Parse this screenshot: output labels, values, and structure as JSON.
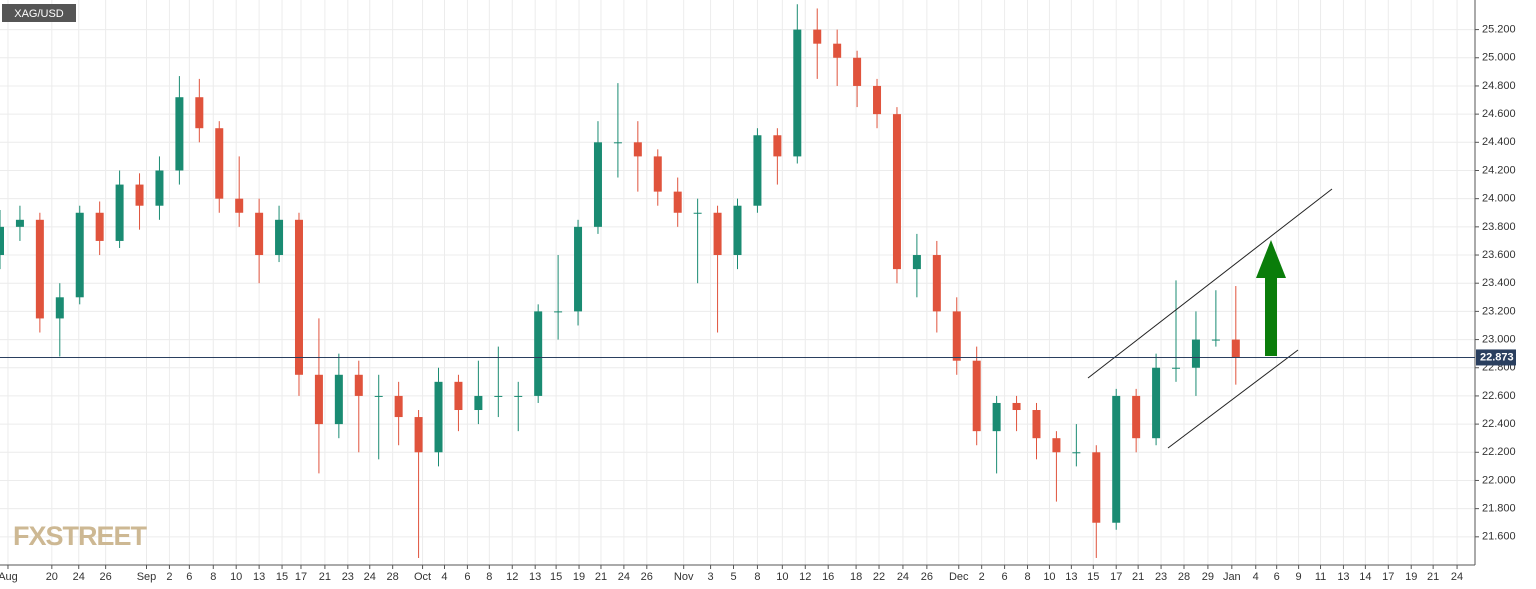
{
  "chart_data": {
    "type": "candlestick",
    "symbol": "XAG/USD",
    "watermark": "FXSTREET",
    "up_color": "#1a8b72",
    "down_color": "#e0533c",
    "grid": true,
    "last_price": 22.873,
    "xlim": [
      0,
      148
    ],
    "ylim": [
      21.4,
      25.41
    ],
    "yticks": [
      {
        "value": 21.6,
        "label": "21.600"
      },
      {
        "value": 21.8,
        "label": "21.800"
      },
      {
        "value": 22.0,
        "label": "22.000"
      },
      {
        "value": 22.2,
        "label": "22.200"
      },
      {
        "value": 22.4,
        "label": "22.400"
      },
      {
        "value": 22.6,
        "label": "22.600"
      },
      {
        "value": 22.8,
        "label": "22.800"
      },
      {
        "value": 23.0,
        "label": "23.000"
      },
      {
        "value": 23.2,
        "label": "23.200"
      },
      {
        "value": 23.4,
        "label": "23.400"
      },
      {
        "value": 23.6,
        "label": "23.600"
      },
      {
        "value": 23.8,
        "label": "23.800"
      },
      {
        "value": 24.0,
        "label": "24.000"
      },
      {
        "value": 24.2,
        "label": "24.200"
      },
      {
        "value": 24.4,
        "label": "24.400"
      },
      {
        "value": 24.6,
        "label": "24.600"
      },
      {
        "value": 24.8,
        "label": "24.800"
      },
      {
        "value": 25.0,
        "label": "25.000"
      },
      {
        "value": 25.2,
        "label": "25.200"
      }
    ],
    "xticks": [
      {
        "value": 0.8,
        "label": "Aug"
      },
      {
        "value": 5.2,
        "label": "20"
      },
      {
        "value": 7.9,
        "label": "24"
      },
      {
        "value": 10.6,
        "label": "26"
      },
      {
        "value": 14.7,
        "label": "Sep"
      },
      {
        "value": 17.0,
        "label": "2"
      },
      {
        "value": 19.0,
        "label": "6"
      },
      {
        "value": 21.4,
        "label": "8"
      },
      {
        "value": 23.7,
        "label": "10"
      },
      {
        "value": 26.0,
        "label": "13"
      },
      {
        "value": 28.3,
        "label": "15"
      },
      {
        "value": 30.2,
        "label": "17"
      },
      {
        "value": 32.6,
        "label": "21"
      },
      {
        "value": 34.9,
        "label": "23"
      },
      {
        "value": 37.1,
        "label": "24"
      },
      {
        "value": 39.4,
        "label": "28"
      },
      {
        "value": 42.4,
        "label": "Oct"
      },
      {
        "value": 44.6,
        "label": "4"
      },
      {
        "value": 46.9,
        "label": "6"
      },
      {
        "value": 49.1,
        "label": "8"
      },
      {
        "value": 51.4,
        "label": "12"
      },
      {
        "value": 53.7,
        "label": "13"
      },
      {
        "value": 55.8,
        "label": "15"
      },
      {
        "value": 58.1,
        "label": "19"
      },
      {
        "value": 60.3,
        "label": "21"
      },
      {
        "value": 62.6,
        "label": "24"
      },
      {
        "value": 64.9,
        "label": "26"
      },
      {
        "value": 68.6,
        "label": "Nov"
      },
      {
        "value": 71.3,
        "label": "3"
      },
      {
        "value": 73.6,
        "label": "5"
      },
      {
        "value": 76.0,
        "label": "8"
      },
      {
        "value": 78.5,
        "label": "10"
      },
      {
        "value": 80.8,
        "label": "12"
      },
      {
        "value": 83.1,
        "label": "16"
      },
      {
        "value": 85.9,
        "label": "18"
      },
      {
        "value": 88.2,
        "label": "22"
      },
      {
        "value": 90.6,
        "label": "24"
      },
      {
        "value": 93.0,
        "label": "26"
      },
      {
        "value": 96.2,
        "label": "Dec"
      },
      {
        "value": 98.5,
        "label": "2"
      },
      {
        "value": 100.8,
        "label": "6"
      },
      {
        "value": 103.1,
        "label": "8"
      },
      {
        "value": 105.3,
        "label": "10"
      },
      {
        "value": 107.5,
        "label": "13"
      },
      {
        "value": 109.7,
        "label": "15"
      },
      {
        "value": 112.0,
        "label": "17"
      },
      {
        "value": 114.2,
        "label": "21"
      },
      {
        "value": 116.5,
        "label": "23"
      },
      {
        "value": 118.8,
        "label": "28"
      },
      {
        "value": 121.2,
        "label": "29"
      },
      {
        "value": 123.6,
        "label": "Jan"
      },
      {
        "value": 126.0,
        "label": "4"
      },
      {
        "value": 128.1,
        "label": "6"
      },
      {
        "value": 130.3,
        "label": "9"
      },
      {
        "value": 132.5,
        "label": "11"
      },
      {
        "value": 134.8,
        "label": "13"
      },
      {
        "value": 137.0,
        "label": "14"
      },
      {
        "value": 139.3,
        "label": "17"
      },
      {
        "value": 141.6,
        "label": "19"
      },
      {
        "value": 143.8,
        "label": "21"
      },
      {
        "value": 146.2,
        "label": "24"
      }
    ],
    "x": [
      0,
      2,
      4,
      6,
      8,
      10,
      12,
      14,
      16,
      18,
      20,
      22,
      24,
      26,
      28,
      30,
      32,
      34,
      36,
      38,
      40,
      42,
      44,
      46,
      48,
      50,
      52,
      54,
      56,
      58,
      60,
      62,
      64,
      66,
      68,
      70,
      72,
      74,
      76,
      78,
      80,
      82,
      84,
      86,
      88,
      90,
      92,
      94,
      96,
      98,
      100,
      102,
      104,
      106,
      108,
      110,
      112,
      114,
      116,
      118,
      120,
      122,
      124
    ],
    "open": [
      23.6,
      23.8,
      23.85,
      23.15,
      23.3,
      23.9,
      23.7,
      24.1,
      23.95,
      24.2,
      24.72,
      24.5,
      24.0,
      23.9,
      23.6,
      23.85,
      22.75,
      22.4,
      22.75,
      22.6,
      22.6,
      22.45,
      22.2,
      22.7,
      22.5,
      22.6,
      22.6,
      22.6,
      23.2,
      23.2,
      23.8,
      24.4,
      24.4,
      24.3,
      24.05,
      23.9,
      23.9,
      23.6,
      23.95,
      24.45,
      24.3,
      25.2,
      25.1,
      25.0,
      24.8,
      24.6,
      23.5,
      23.6,
      23.2,
      22.85,
      22.35,
      22.55,
      22.5,
      22.3,
      22.2,
      22.2,
      21.7,
      22.6,
      22.3,
      22.8,
      22.8,
      23.0,
      23.0
    ],
    "high": [
      23.92,
      23.95,
      23.9,
      23.4,
      23.95,
      23.98,
      24.2,
      24.18,
      24.3,
      24.87,
      24.85,
      24.55,
      24.3,
      24.0,
      23.95,
      23.9,
      23.15,
      22.9,
      22.85,
      22.75,
      22.7,
      22.5,
      22.8,
      22.75,
      22.85,
      22.95,
      22.7,
      23.25,
      23.6,
      23.85,
      24.55,
      24.82,
      24.55,
      24.35,
      24.15,
      24.0,
      23.95,
      24.0,
      24.5,
      24.5,
      25.38,
      25.35,
      25.2,
      25.05,
      24.85,
      24.65,
      23.75,
      23.7,
      23.3,
      22.95,
      22.6,
      22.6,
      22.55,
      22.35,
      22.4,
      22.25,
      22.65,
      22.65,
      22.9,
      23.42,
      23.2,
      23.35,
      23.38
    ],
    "low": [
      23.5,
      23.7,
      23.05,
      22.88,
      23.25,
      23.6,
      23.65,
      23.78,
      23.85,
      24.1,
      24.4,
      23.9,
      23.8,
      23.4,
      23.55,
      22.6,
      22.05,
      22.3,
      22.2,
      22.15,
      22.25,
      21.45,
      22.1,
      22.35,
      22.4,
      22.45,
      22.35,
      22.55,
      23.0,
      23.1,
      23.75,
      24.15,
      24.05,
      23.95,
      23.8,
      23.4,
      23.05,
      23.5,
      23.9,
      24.1,
      24.25,
      24.85,
      24.8,
      24.65,
      24.5,
      23.4,
      23.3,
      23.05,
      22.75,
      22.25,
      22.05,
      22.35,
      22.15,
      21.85,
      22.1,
      21.45,
      21.65,
      22.2,
      22.25,
      22.7,
      22.6,
      22.95,
      22.68
    ],
    "close": [
      23.8,
      23.85,
      23.15,
      23.3,
      23.9,
      23.7,
      24.1,
      23.95,
      24.2,
      24.72,
      24.5,
      24.0,
      23.9,
      23.6,
      23.85,
      22.75,
      22.4,
      22.75,
      22.6,
      22.6,
      22.45,
      22.2,
      22.7,
      22.5,
      22.6,
      22.6,
      22.6,
      23.2,
      23.2,
      23.8,
      24.4,
      24.4,
      24.3,
      24.05,
      23.9,
      23.9,
      23.6,
      23.95,
      24.45,
      24.3,
      25.2,
      25.1,
      25.0,
      24.8,
      24.6,
      23.5,
      23.6,
      23.2,
      22.85,
      22.35,
      22.55,
      22.5,
      22.3,
      22.2,
      22.2,
      21.7,
      22.6,
      22.3,
      22.8,
      22.8,
      23.0,
      23.0,
      22.873
    ]
  }
}
